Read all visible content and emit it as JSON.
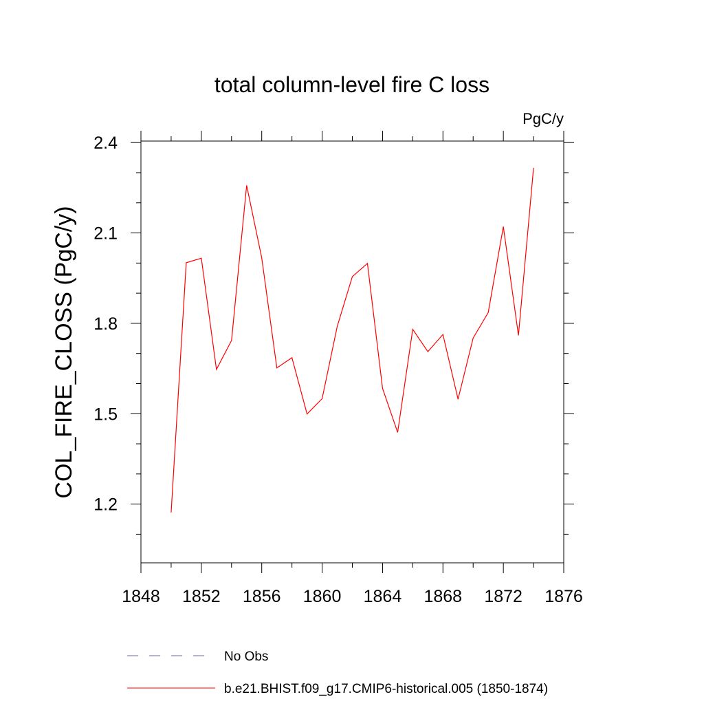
{
  "chart_data": {
    "type": "line",
    "title": "total column-level fire C loss",
    "units_label": "PgC/y",
    "xlabel": "",
    "ylabel": "COL_FIRE_CLOSS  (PgC/y)",
    "xlim": [
      1848,
      1876
    ],
    "ylim": [
      1.005,
      2.405
    ],
    "x_ticks": [
      1848,
      1852,
      1856,
      1860,
      1864,
      1868,
      1872,
      1876
    ],
    "y_ticks": [
      1.2,
      1.5,
      1.8,
      2.1,
      2.4
    ],
    "x_tick_labels": [
      "1848",
      "1852",
      "1856",
      "1860",
      "1864",
      "1868",
      "1872",
      "1876"
    ],
    "y_tick_labels": [
      "1.2",
      "1.5",
      "1.8",
      "2.1",
      "2.4"
    ],
    "x_minor_step": 2,
    "y_minor_step": 0.1,
    "grid": false,
    "legend_position": "bottom",
    "series": [
      {
        "name": "b.e21.BHIST.f09_g17.CMIP6-historical.005 (1850-1874)",
        "color": "#ff0000",
        "style": "solid",
        "x": [
          1850,
          1851,
          1852,
          1853,
          1854,
          1855,
          1856,
          1857,
          1858,
          1859,
          1860,
          1861,
          1862,
          1863,
          1864,
          1865,
          1866,
          1867,
          1868,
          1869,
          1870,
          1871,
          1872,
          1873,
          1874
        ],
        "values": [
          1.172,
          2.001,
          2.016,
          1.647,
          1.743,
          2.258,
          2.017,
          1.652,
          1.686,
          1.499,
          1.55,
          1.79,
          1.955,
          1.999,
          1.584,
          1.438,
          1.78,
          1.706,
          1.763,
          1.548,
          1.751,
          1.836,
          2.121,
          1.76,
          2.316
        ]
      }
    ],
    "legend": [
      {
        "label": "No Obs",
        "color": "#6a6ab0",
        "style": "dashed"
      },
      {
        "label": "b.e21.BHIST.f09_g17.CMIP6-historical.005 (1850-1874)",
        "color": "#ff0000",
        "style": "solid"
      }
    ]
  }
}
